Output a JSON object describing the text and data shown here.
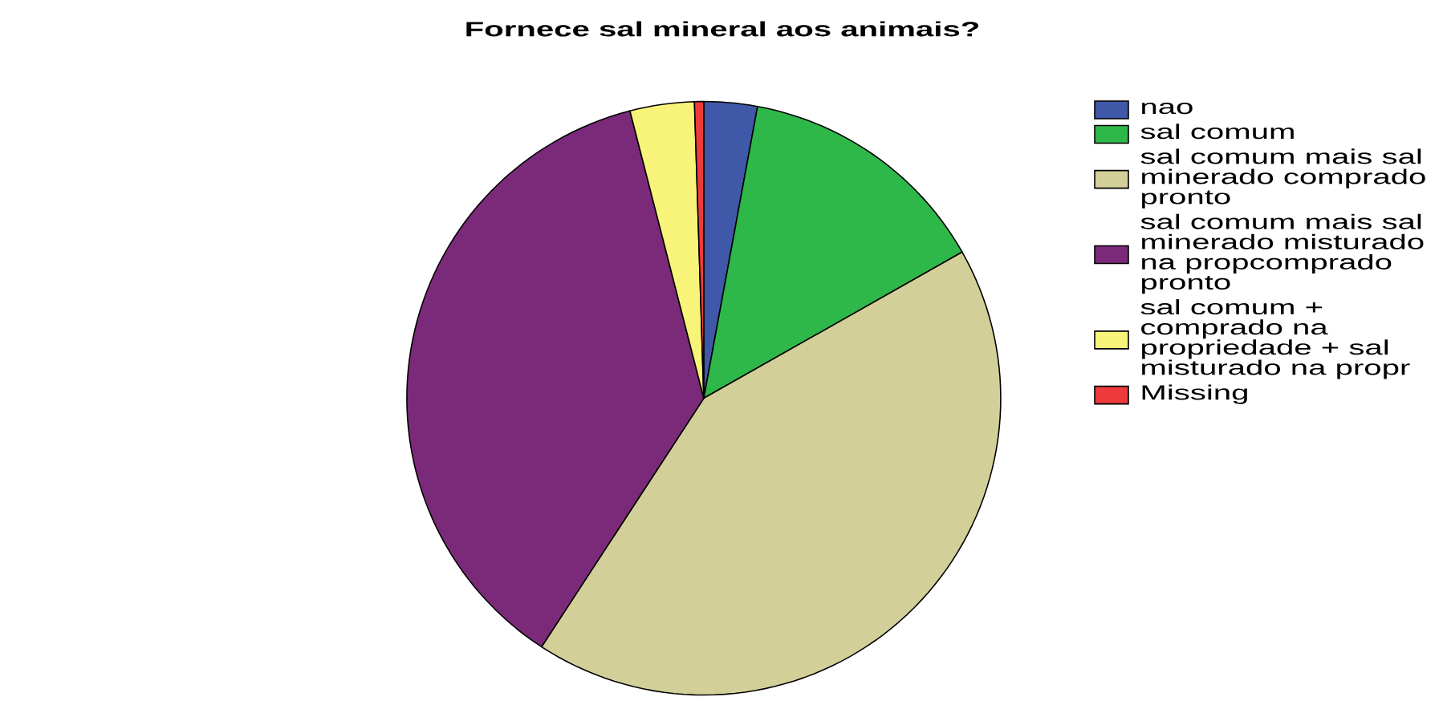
{
  "chart_data": {
    "type": "pie",
    "title": "Fornece sal mineral aos animais?",
    "categories": [
      "nao",
      "sal comum",
      "sal comum mais sal minerado comprado pronto",
      "sal comum mais sal minerado misturado na propcomprado pronto",
      "sal comum + comprado na propriedade + sal misturado na propr",
      "Missing"
    ],
    "values": [
      2.9,
      13.9,
      42.4,
      36.8,
      3.5,
      0.5
    ],
    "colors": [
      "#3f58a8",
      "#2fb84a",
      "#d3cf98",
      "#7b2a7a",
      "#f8f47a",
      "#ee3a3a"
    ],
    "legend": "right"
  }
}
